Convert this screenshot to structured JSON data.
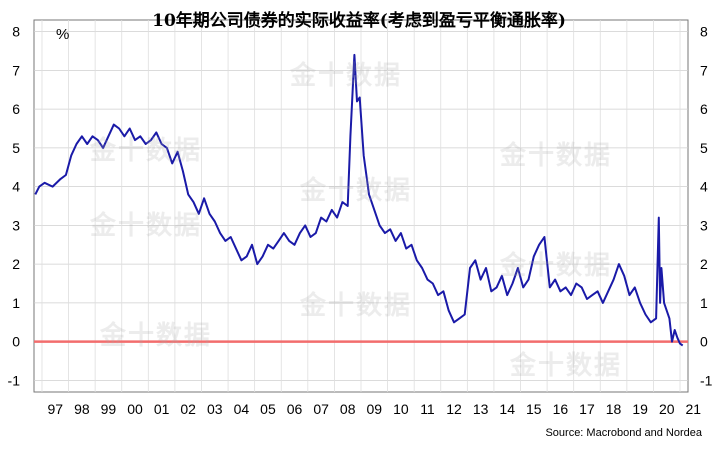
{
  "chart_data": {
    "type": "line",
    "title": "10年期公司债券的实际收益率(考虑到盈亏平衡通胀率)",
    "ylabel": "%",
    "source": "Source: Macrobond and Nordea",
    "watermark": "金十数据",
    "ylim": [
      -1.3,
      8.3
    ],
    "xlim": [
      1996.7,
      2021.3
    ],
    "yticks": [
      "-1",
      "0",
      "1",
      "2",
      "3",
      "4",
      "5",
      "6",
      "7",
      "8"
    ],
    "xticks": [
      "97",
      "98",
      "99",
      "00",
      "01",
      "02",
      "03",
      "04",
      "05",
      "06",
      "07",
      "08",
      "09",
      "10",
      "11",
      "12",
      "13",
      "14",
      "15",
      "16",
      "17",
      "18",
      "19",
      "20",
      "21"
    ],
    "reference_line": {
      "y": 0,
      "color": "#f26d6d"
    },
    "line_color": "#1a1aa8",
    "grid": true,
    "series": [
      {
        "x": [
          1996.75,
          1996.9,
          1997.1,
          1997.4,
          1997.7,
          1997.9,
          1998.1,
          1998.3,
          1998.5,
          1998.7,
          1998.9,
          1999.1,
          1999.3,
          1999.5,
          1999.7,
          1999.9,
          2000.1,
          2000.3,
          2000.5,
          2000.7,
          2000.9,
          2001.1,
          2001.3,
          2001.5,
          2001.7,
          2001.9,
          2002.1,
          2002.3,
          2002.5,
          2002.7,
          2002.9,
          2003.1,
          2003.3,
          2003.5,
          2003.7,
          2003.9,
          2004.1,
          2004.3,
          2004.5,
          2004.7,
          2004.9,
          2005.1,
          2005.3,
          2005.5,
          2005.7,
          2005.9,
          2006.1,
          2006.3,
          2006.5,
          2006.7,
          2006.9,
          2007.1,
          2007.3,
          2007.5,
          2007.7,
          2007.9,
          2008.1,
          2008.3,
          2008.5,
          2008.6,
          2008.75,
          2008.85,
          2008.95,
          2009.1,
          2009.3,
          2009.5,
          2009.7,
          2009.9,
          2010.1,
          2010.3,
          2010.5,
          2010.7,
          2010.9,
          2011.1,
          2011.3,
          2011.5,
          2011.7,
          2011.9,
          2012.1,
          2012.3,
          2012.5,
          2012.7,
          2012.9,
          2013.1,
          2013.3,
          2013.5,
          2013.7,
          2013.9,
          2014.1,
          2014.3,
          2014.5,
          2014.7,
          2014.9,
          2015.1,
          2015.3,
          2015.5,
          2015.7,
          2015.9,
          2016.1,
          2016.3,
          2016.5,
          2016.7,
          2016.9,
          2017.1,
          2017.3,
          2017.5,
          2017.7,
          2017.9,
          2018.1,
          2018.3,
          2018.5,
          2018.7,
          2018.9,
          2019.1,
          2019.3,
          2019.5,
          2019.7,
          2019.9,
          2020.1,
          2020.2,
          2020.25,
          2020.3,
          2020.4,
          2020.5,
          2020.6,
          2020.7,
          2020.8,
          2020.9,
          2021.0,
          2021.1
        ],
        "y": [
          3.8,
          4.0,
          4.1,
          4.0,
          4.2,
          4.3,
          4.8,
          5.1,
          5.3,
          5.1,
          5.3,
          5.2,
          5.0,
          5.3,
          5.6,
          5.5,
          5.3,
          5.5,
          5.2,
          5.3,
          5.1,
          5.2,
          5.4,
          5.1,
          5.0,
          4.6,
          4.9,
          4.4,
          3.8,
          3.6,
          3.3,
          3.7,
          3.3,
          3.1,
          2.8,
          2.6,
          2.7,
          2.4,
          2.1,
          2.2,
          2.5,
          2.0,
          2.2,
          2.5,
          2.4,
          2.6,
          2.8,
          2.6,
          2.5,
          2.8,
          3.0,
          2.7,
          2.8,
          3.2,
          3.1,
          3.4,
          3.2,
          3.6,
          3.5,
          5.3,
          7.4,
          6.2,
          6.3,
          4.8,
          3.8,
          3.4,
          3.0,
          2.8,
          2.9,
          2.6,
          2.8,
          2.4,
          2.5,
          2.1,
          1.9,
          1.6,
          1.5,
          1.2,
          1.3,
          0.8,
          0.5,
          0.6,
          0.7,
          1.9,
          2.1,
          1.6,
          1.9,
          1.3,
          1.4,
          1.7,
          1.2,
          1.5,
          1.9,
          1.4,
          1.6,
          2.2,
          2.5,
          2.7,
          1.4,
          1.6,
          1.3,
          1.4,
          1.2,
          1.5,
          1.4,
          1.1,
          1.2,
          1.3,
          1.0,
          1.3,
          1.6,
          2.0,
          1.7,
          1.2,
          1.4,
          1.0,
          0.7,
          0.5,
          0.6,
          3.2,
          1.0,
          1.9,
          1.0,
          0.8,
          0.6,
          0.0,
          0.3,
          0.1,
          -0.05,
          -0.1
        ]
      }
    ]
  }
}
